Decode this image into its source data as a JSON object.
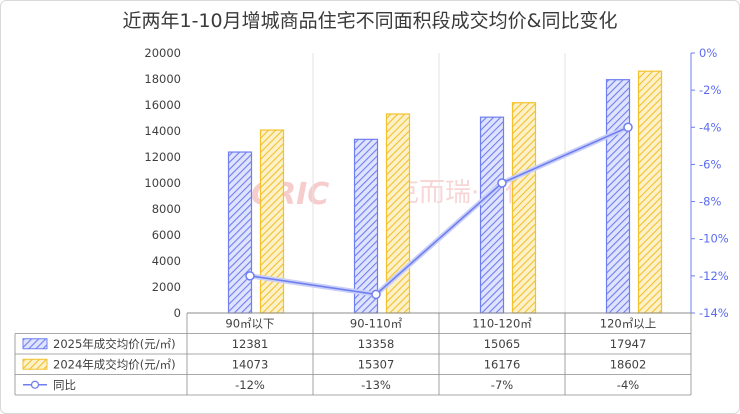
{
  "chart_data": {
    "type": "bar",
    "title": "近两年1-10月增城商品住宅不同面积段成交均价&同比变化",
    "categories": [
      "90㎡以下",
      "90-110㎡",
      "110-120㎡",
      "120㎡以上"
    ],
    "series": [
      {
        "name": "2025年成交均价(元/㎡)",
        "type": "bar",
        "axis": "left",
        "color": "#6f7ff0",
        "pattern": "diagonal-hatch",
        "values": [
          12381,
          13358,
          15065,
          17947
        ]
      },
      {
        "name": "2024年成交均价(元/㎡)",
        "type": "bar",
        "axis": "left",
        "color": "#f2c12e",
        "pattern": "diagonal-hatch",
        "values": [
          14073,
          15307,
          16176,
          18602
        ]
      },
      {
        "name": "同比",
        "type": "line",
        "axis": "right",
        "color": "#6f7ff0",
        "marker": "hollow-circle",
        "values": [
          -12,
          -13,
          -7,
          -4
        ]
      }
    ],
    "table_labels": {
      "s0": [
        "12381",
        "13358",
        "15065",
        "17947"
      ],
      "s1": [
        "14073",
        "15307",
        "16176",
        "18602"
      ],
      "s2": [
        "-12%",
        "-13%",
        "-7%",
        "-4%"
      ]
    },
    "ylim": [
      0,
      20000
    ],
    "yticks": [
      0,
      2000,
      4000,
      6000,
      8000,
      10000,
      12000,
      14000,
      16000,
      18000,
      20000
    ],
    "y2lim": [
      -14,
      0
    ],
    "y2ticks": [
      "0%",
      "-2%",
      "-4%",
      "-6%",
      "-8%",
      "-10%",
      "-12%",
      "-14%"
    ],
    "grid": "vertical category separators only",
    "legend": "data table below plot",
    "watermark": {
      "logo": "CRIC",
      "text": "克而瑞·广佛"
    }
  }
}
